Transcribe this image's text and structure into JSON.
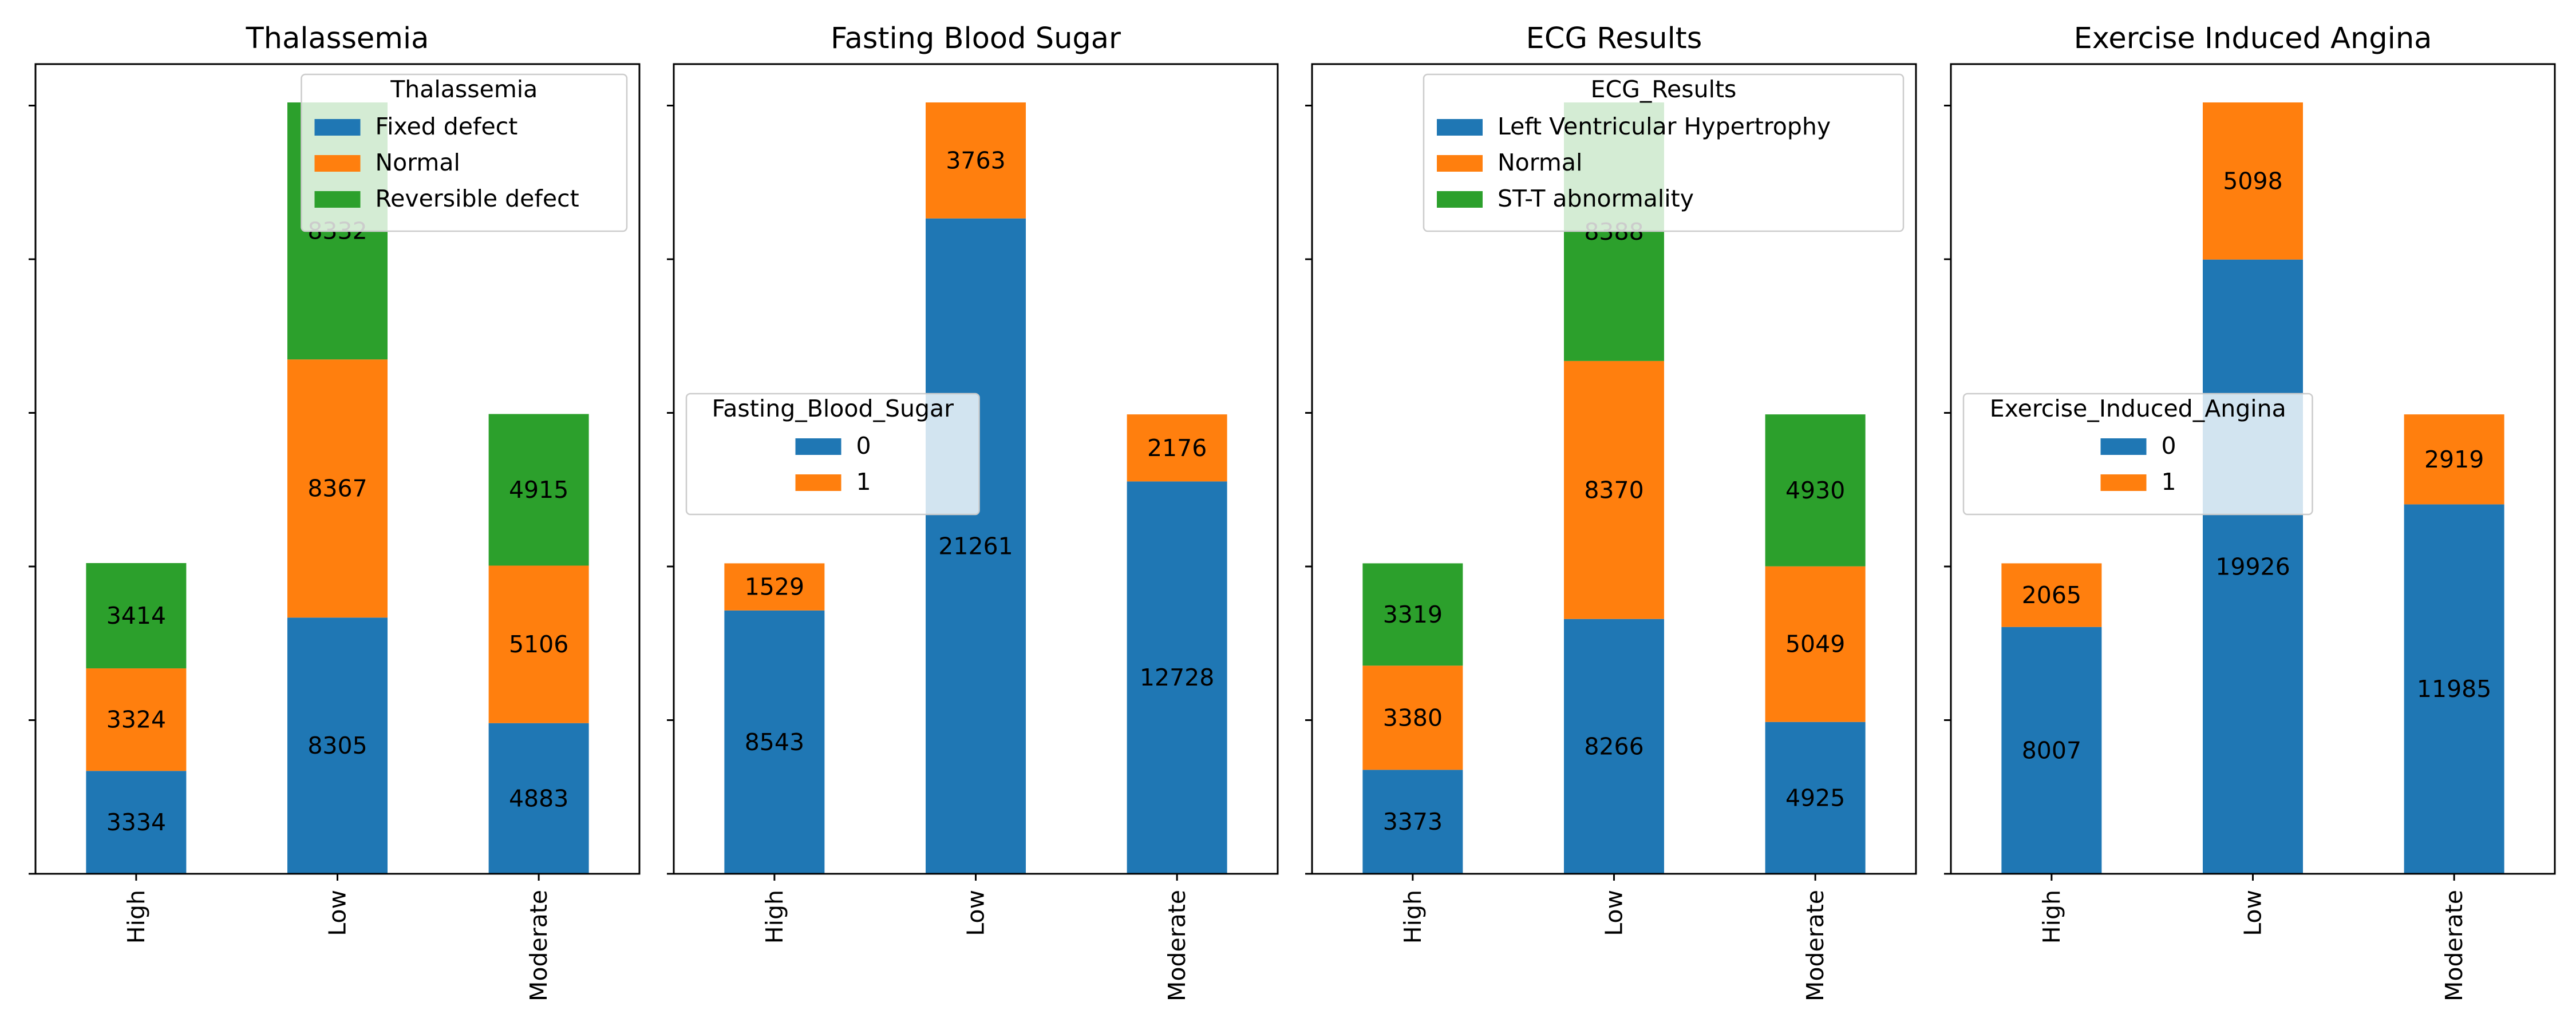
{
  "chart_data": [
    {
      "type": "bar",
      "stacked": true,
      "title": "Thalassemia",
      "categories": [
        "High",
        "Low",
        "Moderate"
      ],
      "legend_title": "Thalassemia",
      "legend_position": "upper right",
      "ylim": [
        0,
        25000
      ],
      "series": [
        {
          "name": "Fixed defect",
          "color": "#1f77b4",
          "values": [
            3334,
            8305,
            4883
          ]
        },
        {
          "name": "Normal",
          "color": "#ff7f0e",
          "values": [
            3324,
            8367,
            5106
          ]
        },
        {
          "name": "Reversible defect",
          "color": "#2ca02c",
          "values": [
            3414,
            8332,
            4915
          ]
        }
      ]
    },
    {
      "type": "bar",
      "stacked": true,
      "title": "Fasting Blood Sugar",
      "categories": [
        "High",
        "Low",
        "Moderate"
      ],
      "legend_title": "Fasting_Blood_Sugar",
      "legend_position": "center left",
      "ylim": [
        0,
        25000
      ],
      "series": [
        {
          "name": "0",
          "color": "#1f77b4",
          "values": [
            8543,
            21261,
            12728
          ]
        },
        {
          "name": "1",
          "color": "#ff7f0e",
          "values": [
            1529,
            3763,
            2176
          ]
        }
      ]
    },
    {
      "type": "bar",
      "stacked": true,
      "title": "ECG Results",
      "categories": [
        "High",
        "Low",
        "Moderate"
      ],
      "legend_title": "ECG_Results",
      "legend_position": "upper right",
      "ylim": [
        0,
        25000
      ],
      "series": [
        {
          "name": "Left Ventricular Hypertrophy",
          "color": "#1f77b4",
          "values": [
            3373,
            8266,
            4925
          ]
        },
        {
          "name": "Normal",
          "color": "#ff7f0e",
          "values": [
            3380,
            8370,
            5049
          ]
        },
        {
          "name": "ST-T abnormality",
          "color": "#2ca02c",
          "values": [
            3319,
            8388,
            4930
          ]
        }
      ]
    },
    {
      "type": "bar",
      "stacked": true,
      "title": "Exercise Induced Angina",
      "categories": [
        "High",
        "Low",
        "Moderate"
      ],
      "legend_title": "Exercise_Induced_Angina",
      "legend_position": "center left",
      "ylim": [
        0,
        25000
      ],
      "series": [
        {
          "name": "0",
          "color": "#1f77b4",
          "values": [
            8007,
            19926,
            11985
          ]
        },
        {
          "name": "1",
          "color": "#ff7f0e",
          "values": [
            2065,
            5098,
            2919
          ]
        }
      ]
    }
  ]
}
